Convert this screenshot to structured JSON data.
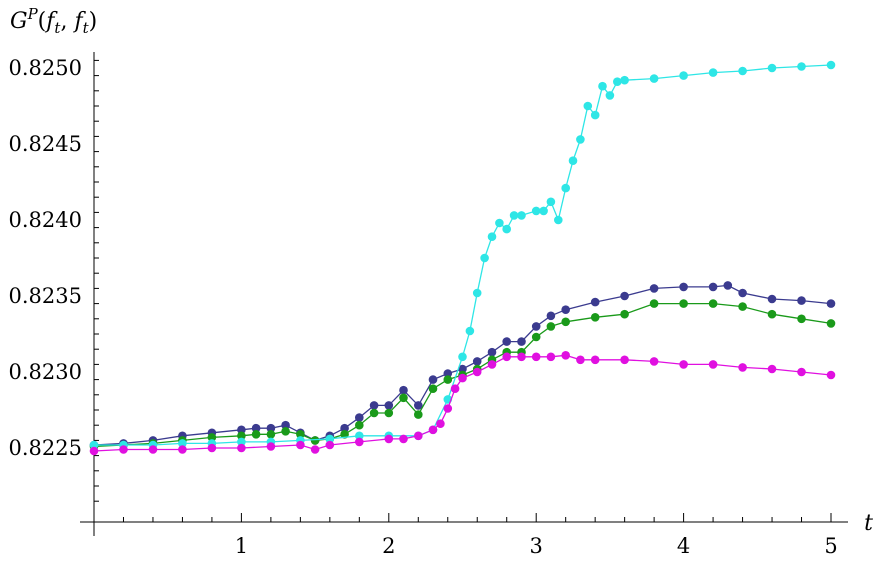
{
  "chart_data": {
    "type": "scatter",
    "title": "",
    "xlabel": "t",
    "ylabel": "G^P(f_t, f_t)",
    "xlim": [
      0,
      5
    ],
    "ylim": [
      0.82215,
      0.8251
    ],
    "x_ticks": [
      1,
      2,
      3,
      4,
      5
    ],
    "y_ticks": [
      0.8225,
      0.823,
      0.8235,
      0.824,
      0.8245,
      0.825
    ],
    "y_tick_labels": [
      "0.8225",
      "0.8230",
      "0.8235",
      "0.8240",
      "0.8245",
      "0.8250"
    ],
    "grid": false,
    "legend": "none",
    "markers": "filled circles joined by lines",
    "series": [
      {
        "color": "#3b3b8f",
        "x": [
          0,
          0.2,
          0.4,
          0.6,
          0.8,
          1.0,
          1.1,
          1.2,
          1.3,
          1.4,
          1.5,
          1.6,
          1.7,
          1.8,
          1.9,
          2.0,
          2.1,
          2.2,
          2.3,
          2.4,
          2.5,
          2.6,
          2.7,
          2.8,
          2.9,
          3.0,
          3.1,
          3.2,
          3.4,
          3.6,
          3.8,
          4.0,
          4.2,
          4.3,
          4.4,
          4.6,
          4.8,
          5.0
        ],
        "y": [
          0.82252,
          0.82253,
          0.82255,
          0.82258,
          0.8226,
          0.82262,
          0.82263,
          0.82263,
          0.82265,
          0.8226,
          0.82255,
          0.82258,
          0.82263,
          0.8227,
          0.82278,
          0.82278,
          0.82288,
          0.82278,
          0.82295,
          0.82299,
          0.82302,
          0.82307,
          0.82313,
          0.8232,
          0.8232,
          0.8233,
          0.82337,
          0.82341,
          0.82346,
          0.8235,
          0.82355,
          0.82356,
          0.82356,
          0.82357,
          0.82352,
          0.82348,
          0.82347,
          0.82345
        ]
      },
      {
        "color": "#1a9a1a",
        "x": [
          0,
          0.2,
          0.4,
          0.6,
          0.8,
          1.0,
          1.1,
          1.2,
          1.3,
          1.4,
          1.5,
          1.6,
          1.7,
          1.8,
          1.9,
          2.0,
          2.1,
          2.2,
          2.3,
          2.4,
          2.5,
          2.6,
          2.7,
          2.8,
          2.9,
          3.0,
          3.1,
          3.2,
          3.4,
          3.6,
          3.8,
          4.0,
          4.2,
          4.4,
          4.6,
          4.8,
          5.0
        ],
        "y": [
          0.82251,
          0.82252,
          0.82253,
          0.82255,
          0.82257,
          0.82258,
          0.82259,
          0.82259,
          0.82261,
          0.82259,
          0.82255,
          0.82256,
          0.82259,
          0.82265,
          0.82273,
          0.82273,
          0.82283,
          0.82272,
          0.82289,
          0.82295,
          0.82298,
          0.82302,
          0.82308,
          0.82313,
          0.82313,
          0.82323,
          0.8233,
          0.82333,
          0.82336,
          0.82338,
          0.82345,
          0.82345,
          0.82345,
          0.82343,
          0.82338,
          0.82335,
          0.82332
        ]
      },
      {
        "color": "#2ee6e6",
        "x": [
          0,
          0.2,
          0.4,
          0.6,
          0.8,
          1.0,
          1.2,
          1.4,
          1.6,
          1.8,
          2.0,
          2.2,
          2.3,
          2.4,
          2.5,
          2.55,
          2.6,
          2.65,
          2.7,
          2.75,
          2.8,
          2.85,
          2.9,
          3.0,
          3.05,
          3.1,
          3.15,
          3.2,
          3.25,
          3.3,
          3.35,
          3.4,
          3.45,
          3.5,
          3.55,
          3.6,
          3.8,
          4.0,
          4.2,
          4.4,
          4.6,
          4.8,
          5.0
        ],
        "y": [
          0.82252,
          0.82252,
          0.82252,
          0.82253,
          0.82253,
          0.82254,
          0.82254,
          0.82255,
          0.82256,
          0.82258,
          0.82258,
          0.82258,
          0.82262,
          0.82282,
          0.8231,
          0.82327,
          0.82352,
          0.82375,
          0.82389,
          0.82398,
          0.82394,
          0.82403,
          0.82403,
          0.82406,
          0.82406,
          0.82412,
          0.824,
          0.82421,
          0.82439,
          0.82453,
          0.82475,
          0.82469,
          0.82488,
          0.82482,
          0.82491,
          0.82492,
          0.82493,
          0.82495,
          0.82497,
          0.82498,
          0.825,
          0.82501,
          0.82502
        ]
      },
      {
        "color": "#e010e0",
        "x": [
          0,
          0.2,
          0.4,
          0.6,
          0.8,
          1.0,
          1.2,
          1.4,
          1.5,
          1.6,
          1.8,
          2.0,
          2.1,
          2.2,
          2.3,
          2.35,
          2.4,
          2.45,
          2.5,
          2.6,
          2.7,
          2.8,
          2.9,
          3.0,
          3.1,
          3.2,
          3.3,
          3.4,
          3.6,
          3.8,
          4.0,
          4.2,
          4.4,
          4.6,
          4.8,
          5.0
        ],
        "y": [
          0.82248,
          0.82249,
          0.82249,
          0.82249,
          0.8225,
          0.8225,
          0.82251,
          0.82252,
          0.82249,
          0.82252,
          0.82254,
          0.82256,
          0.82256,
          0.82258,
          0.82262,
          0.82266,
          0.82276,
          0.82289,
          0.82296,
          0.823,
          0.82305,
          0.8231,
          0.8231,
          0.8231,
          0.8231,
          0.82311,
          0.82308,
          0.82308,
          0.82308,
          0.82307,
          0.82305,
          0.82305,
          0.82303,
          0.82302,
          0.823,
          0.82298
        ]
      }
    ]
  }
}
